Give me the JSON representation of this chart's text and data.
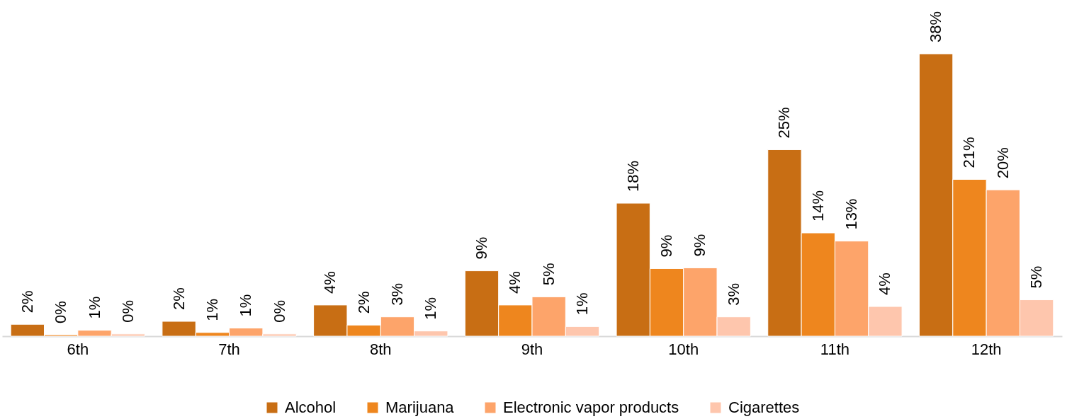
{
  "chart_data": {
    "type": "bar",
    "categories": [
      "6th",
      "7th",
      "8th",
      "9th",
      "10th",
      "11th",
      "12th"
    ],
    "series": [
      {
        "name": "Alcohol",
        "color": "#c86e14",
        "values": [
          1.6,
          2.0,
          4.2,
          8.8,
          17.9,
          25.1,
          38.0
        ],
        "value_labels": [
          "2%",
          "2%",
          "4%",
          "9%",
          "18%",
          "25%",
          "38%"
        ]
      },
      {
        "name": "Marijuana",
        "color": "#ee861e",
        "values": [
          0.2,
          0.5,
          1.5,
          4.2,
          9.1,
          13.9,
          21.1
        ],
        "value_labels": [
          "0%",
          "1%",
          "2%",
          "4%",
          "9%",
          "14%",
          "21%"
        ]
      },
      {
        "name": "Electronic vapor products",
        "color": "#fda46a",
        "values": [
          0.8,
          1.1,
          2.6,
          5.3,
          9.2,
          12.8,
          19.7
        ],
        "value_labels": [
          "1%",
          "1%",
          "3%",
          "5%",
          "9%",
          "13%",
          "20%"
        ]
      },
      {
        "name": "Cigarettes",
        "color": "#fec6ad",
        "values": [
          0.3,
          0.3,
          0.7,
          1.3,
          2.6,
          4.0,
          4.9
        ],
        "value_labels": [
          "0%",
          "0%",
          "1%",
          "1%",
          "3%",
          "4%",
          "5%"
        ]
      }
    ],
    "legend": "bottom",
    "tick_labels": "x"
  }
}
